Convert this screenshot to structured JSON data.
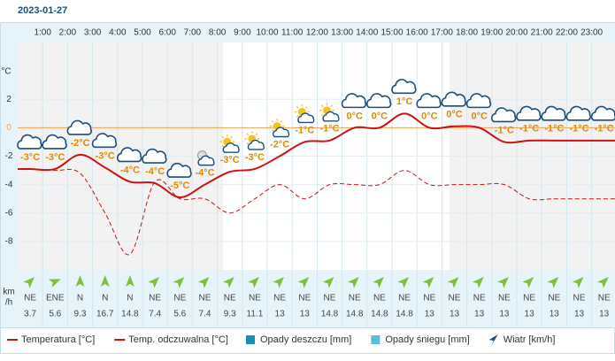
{
  "chart_data": {
    "type": "line",
    "title": "2023-01-27",
    "y_label": "°C",
    "categories": [
      null,
      "1:00",
      "2:00",
      "3:00",
      "4:00",
      "5:00",
      "6:00",
      "7:00",
      "8:00",
      "9:00",
      "10:00",
      "11:00",
      "12:00",
      "13:00",
      "14:00",
      "15:00",
      "16:00",
      "17:00",
      "18:00",
      "19:00",
      "20:00",
      "21:00",
      "22:00",
      "23:00"
    ],
    "ylim": [
      -10,
      6
    ],
    "yticks": [
      -8,
      -6,
      -4,
      -2,
      0,
      2
    ],
    "zero_color": "#f0a050",
    "grid": true,
    "series": [
      {
        "name": "Temperatura [°C]",
        "color": "#cc1111",
        "dash": false,
        "values": [
          -2.9,
          -2.9,
          -1.9,
          -2.8,
          -3.8,
          -3.9,
          -4.9,
          -4.0,
          -3.1,
          -2.9,
          -2.0,
          -1.0,
          -0.9,
          0.0,
          0.0,
          1.0,
          0.0,
          0.1,
          0.0,
          -1.0,
          -0.9,
          -0.9,
          -0.9,
          -0.9
        ],
        "value_labels": [
          "-3°C",
          "-3°C",
          "-2°C",
          "-3°C",
          "-4°C",
          "-4°C",
          "-5°C",
          "-4°C",
          "-3°C",
          "-3°C",
          "-2°C",
          "-1°C",
          "-1°C",
          "0°C",
          "0°C",
          "1°C",
          "0°C",
          "0°C",
          "0°C",
          "-1°C",
          "-1°C",
          "-1°C",
          "-1°C",
          "-1°C"
        ]
      },
      {
        "name": "Temp. odczuwalna [°C]",
        "color": "#cc1111",
        "dash": true,
        "values": [
          -2.9,
          -3.0,
          -3.2,
          -6.0,
          -8.9,
          -3.8,
          -5.0,
          -5.0,
          -6.0,
          -5.0,
          -4.0,
          -5.0,
          -4.0,
          -4.0,
          -4.0,
          -3.0,
          -4.0,
          -4.0,
          -4.0,
          -4.0,
          -5.0,
          -5.0,
          -5.0,
          -5.0
        ]
      }
    ],
    "precipitation": [
      {
        "name": "Opady deszczu [mm]",
        "color": "#1a8fb0"
      },
      {
        "name": "Opady śniegu [mm]",
        "color": "#5bbcd6"
      }
    ],
    "wind": {
      "name": "Wiatr [km/h]",
      "unit_top": "km",
      "unit_bottom": "/h",
      "color": "#7fbf3f",
      "directions": [
        "NE",
        "ENE",
        "N",
        "N",
        "N",
        "NE",
        "NE",
        "NE",
        "NE",
        "NE",
        "NE",
        "NE",
        "NE",
        "NE",
        "NE",
        "NE",
        "NE",
        "NE",
        "NE",
        "NE",
        "NE",
        "NE",
        "NE",
        "NE"
      ],
      "speeds": [
        3.7,
        5.6,
        9.3,
        16.7,
        14.8,
        7.4,
        5.6,
        7.4,
        9.3,
        11.1,
        13,
        13,
        14.8,
        14.8,
        14.8,
        14.8,
        13,
        13,
        13,
        13,
        13,
        13,
        13,
        13
      ]
    }
  }
}
